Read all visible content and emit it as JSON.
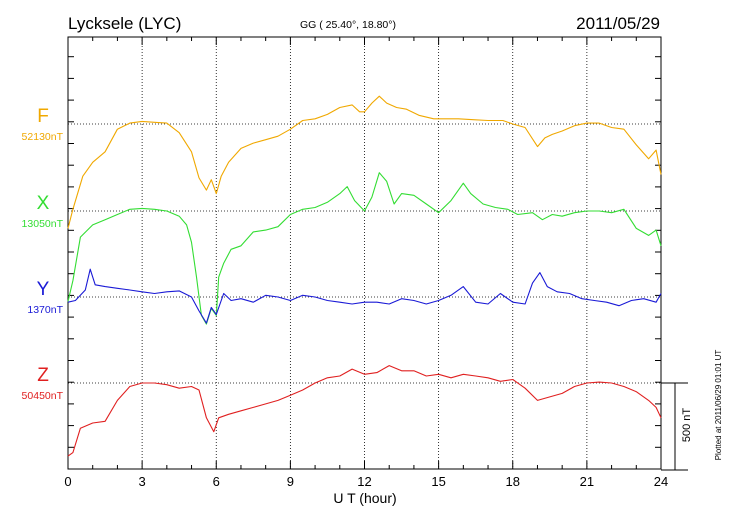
{
  "header": {
    "station": "Lycksele (LYC)",
    "coords": "GG ( 25.40°,  18.80°)",
    "date": "2011/05/29"
  },
  "side_note": "Plotted at 2011/06/29 01:01  UT",
  "chart_data": {
    "type": "line",
    "title": "Lycksele (LYC)",
    "xlabel": "U T (hour)",
    "xlim": [
      0,
      24
    ],
    "x_ticks": [
      "0",
      "3",
      "6",
      "9",
      "12",
      "15",
      "18",
      "21",
      "24"
    ],
    "scale_bar": "500 nT",
    "grid": true,
    "series": [
      {
        "name": "F",
        "baseline": "52130nT",
        "color": "#f0a800",
        "points": [
          [
            0,
            -600
          ],
          [
            0.2,
            -490
          ],
          [
            0.6,
            -300
          ],
          [
            1,
            -220
          ],
          [
            1.5,
            -160
          ],
          [
            2,
            -30
          ],
          [
            2.5,
            5
          ],
          [
            3,
            15
          ],
          [
            3.5,
            10
          ],
          [
            4,
            5
          ],
          [
            4.5,
            -50
          ],
          [
            5,
            -160
          ],
          [
            5.3,
            -310
          ],
          [
            5.6,
            -380
          ],
          [
            5.8,
            -320
          ],
          [
            6,
            -400
          ],
          [
            6.2,
            -300
          ],
          [
            6.5,
            -220
          ],
          [
            7,
            -140
          ],
          [
            7.5,
            -110
          ],
          [
            8,
            -90
          ],
          [
            8.5,
            -70
          ],
          [
            9,
            -30
          ],
          [
            9.5,
            20
          ],
          [
            10,
            30
          ],
          [
            10.5,
            55
          ],
          [
            11,
            95
          ],
          [
            11.5,
            110
          ],
          [
            11.8,
            70
          ],
          [
            12,
            70
          ],
          [
            12.3,
            120
          ],
          [
            12.6,
            160
          ],
          [
            12.9,
            120
          ],
          [
            13.3,
            95
          ],
          [
            13.7,
            85
          ],
          [
            14.2,
            50
          ],
          [
            14.8,
            30
          ],
          [
            15.2,
            30
          ],
          [
            15.8,
            30
          ],
          [
            16.4,
            25
          ],
          [
            17,
            20
          ],
          [
            17.6,
            20
          ],
          [
            18,
            0
          ],
          [
            18.5,
            -20
          ],
          [
            19,
            -130
          ],
          [
            19.3,
            -80
          ],
          [
            19.6,
            -60
          ],
          [
            20,
            -40
          ],
          [
            20.5,
            -10
          ],
          [
            21,
            5
          ],
          [
            21.5,
            5
          ],
          [
            22,
            -20
          ],
          [
            22.5,
            -30
          ],
          [
            23,
            -120
          ],
          [
            23.5,
            -200
          ],
          [
            23.8,
            -150
          ],
          [
            24,
            -290
          ]
        ]
      },
      {
        "name": "X",
        "baseline": "13050nT",
        "color": "#33dd33",
        "points": [
          [
            0,
            -520
          ],
          [
            0.2,
            -400
          ],
          [
            0.5,
            -150
          ],
          [
            1,
            -80
          ],
          [
            1.5,
            -50
          ],
          [
            2,
            -20
          ],
          [
            2.5,
            10
          ],
          [
            3,
            15
          ],
          [
            3.5,
            10
          ],
          [
            4,
            0
          ],
          [
            4.5,
            -30
          ],
          [
            4.8,
            -80
          ],
          [
            5,
            -180
          ],
          [
            5.2,
            -380
          ],
          [
            5.4,
            -600
          ],
          [
            5.6,
            -650
          ],
          [
            5.8,
            -560
          ],
          [
            6,
            -600
          ],
          [
            6.1,
            -380
          ],
          [
            6.3,
            -300
          ],
          [
            6.6,
            -220
          ],
          [
            7,
            -200
          ],
          [
            7.5,
            -120
          ],
          [
            8,
            -110
          ],
          [
            8.5,
            -90
          ],
          [
            9,
            -20
          ],
          [
            9.5,
            10
          ],
          [
            10,
            20
          ],
          [
            10.5,
            50
          ],
          [
            11,
            100
          ],
          [
            11.3,
            140
          ],
          [
            11.6,
            60
          ],
          [
            12,
            0
          ],
          [
            12.3,
            80
          ],
          [
            12.6,
            220
          ],
          [
            12.9,
            170
          ],
          [
            13.2,
            40
          ],
          [
            13.5,
            100
          ],
          [
            14,
            90
          ],
          [
            14.5,
            40
          ],
          [
            15,
            -10
          ],
          [
            15.5,
            60
          ],
          [
            16,
            160
          ],
          [
            16.3,
            100
          ],
          [
            16.8,
            40
          ],
          [
            17.3,
            20
          ],
          [
            17.8,
            10
          ],
          [
            18.2,
            -20
          ],
          [
            18.8,
            -10
          ],
          [
            19.2,
            -50
          ],
          [
            19.6,
            -20
          ],
          [
            20,
            -30
          ],
          [
            20.5,
            -10
          ],
          [
            21,
            0
          ],
          [
            21.5,
            0
          ],
          [
            22,
            -10
          ],
          [
            22.5,
            10
          ],
          [
            23,
            -100
          ],
          [
            23.5,
            -140
          ],
          [
            23.8,
            -110
          ],
          [
            24,
            -200
          ]
        ]
      },
      {
        "name": "Y",
        "baseline": "1370nT",
        "color": "#1a1ad6",
        "points": [
          [
            0,
            -30
          ],
          [
            0.3,
            -20
          ],
          [
            0.7,
            40
          ],
          [
            0.9,
            160
          ],
          [
            1.1,
            70
          ],
          [
            1.5,
            60
          ],
          [
            2,
            50
          ],
          [
            2.5,
            40
          ],
          [
            3,
            30
          ],
          [
            3.5,
            20
          ],
          [
            4,
            30
          ],
          [
            4.5,
            35
          ],
          [
            5,
            0
          ],
          [
            5.3,
            -80
          ],
          [
            5.6,
            -150
          ],
          [
            5.8,
            -60
          ],
          [
            6,
            -100
          ],
          [
            6.3,
            20
          ],
          [
            6.6,
            -20
          ],
          [
            7,
            -10
          ],
          [
            7.5,
            -30
          ],
          [
            8,
            10
          ],
          [
            8.5,
            0
          ],
          [
            9,
            -20
          ],
          [
            9.5,
            10
          ],
          [
            10,
            0
          ],
          [
            10.5,
            -20
          ],
          [
            11,
            -30
          ],
          [
            11.5,
            -40
          ],
          [
            12,
            -30
          ],
          [
            12.5,
            -30
          ],
          [
            13,
            -40
          ],
          [
            13.5,
            -10
          ],
          [
            14,
            -20
          ],
          [
            14.5,
            -40
          ],
          [
            15,
            -20
          ],
          [
            15.5,
            10
          ],
          [
            16,
            60
          ],
          [
            16.5,
            -30
          ],
          [
            17,
            -40
          ],
          [
            17.5,
            20
          ],
          [
            18,
            -30
          ],
          [
            18.5,
            -40
          ],
          [
            18.8,
            80
          ],
          [
            19.1,
            140
          ],
          [
            19.4,
            60
          ],
          [
            19.8,
            30
          ],
          [
            20.3,
            20
          ],
          [
            20.8,
            -10
          ],
          [
            21.3,
            -20
          ],
          [
            21.8,
            -30
          ],
          [
            22.3,
            -50
          ],
          [
            22.8,
            -20
          ],
          [
            23.3,
            -10
          ],
          [
            23.8,
            -30
          ],
          [
            24,
            20
          ]
        ]
      },
      {
        "name": "Z",
        "baseline": "50450nT",
        "color": "#e02020",
        "points": [
          [
            0,
            -420
          ],
          [
            0.2,
            -400
          ],
          [
            0.5,
            -260
          ],
          [
            1,
            -230
          ],
          [
            1.5,
            -220
          ],
          [
            2,
            -100
          ],
          [
            2.5,
            -20
          ],
          [
            3,
            0
          ],
          [
            3.5,
            0
          ],
          [
            4,
            -10
          ],
          [
            4.5,
            -30
          ],
          [
            5,
            -20
          ],
          [
            5.3,
            -40
          ],
          [
            5.6,
            -200
          ],
          [
            5.9,
            -280
          ],
          [
            6.1,
            -200
          ],
          [
            6.5,
            -180
          ],
          [
            7,
            -160
          ],
          [
            7.5,
            -140
          ],
          [
            8,
            -120
          ],
          [
            8.5,
            -100
          ],
          [
            9,
            -70
          ],
          [
            9.5,
            -40
          ],
          [
            10,
            0
          ],
          [
            10.5,
            30
          ],
          [
            11,
            40
          ],
          [
            11.5,
            80
          ],
          [
            12,
            50
          ],
          [
            12.5,
            60
          ],
          [
            13,
            100
          ],
          [
            13.5,
            70
          ],
          [
            14,
            70
          ],
          [
            14.5,
            40
          ],
          [
            15,
            50
          ],
          [
            15.5,
            30
          ],
          [
            16,
            50
          ],
          [
            16.5,
            40
          ],
          [
            17,
            30
          ],
          [
            17.5,
            10
          ],
          [
            18,
            20
          ],
          [
            18.5,
            -30
          ],
          [
            19,
            -100
          ],
          [
            19.5,
            -80
          ],
          [
            20,
            -60
          ],
          [
            20.5,
            -20
          ],
          [
            21,
            0
          ],
          [
            21.5,
            5
          ],
          [
            22,
            0
          ],
          [
            22.5,
            -20
          ],
          [
            23,
            -50
          ],
          [
            23.5,
            -100
          ],
          [
            23.8,
            -140
          ],
          [
            24,
            -200
          ]
        ]
      }
    ]
  }
}
